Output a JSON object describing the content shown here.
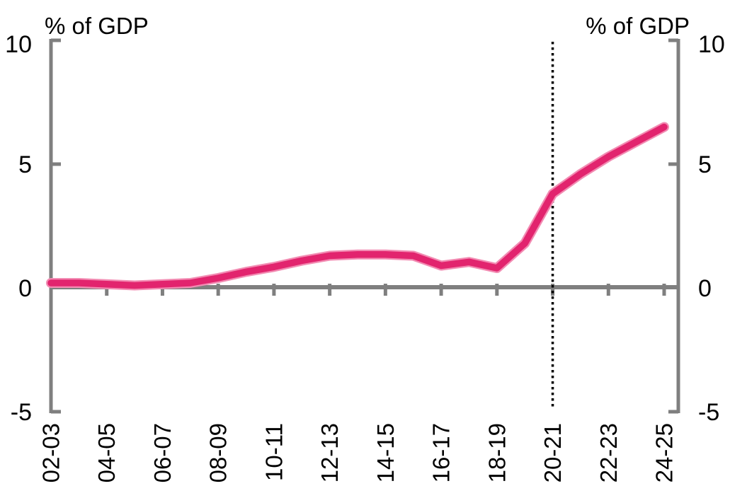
{
  "chart_data": {
    "type": "line",
    "title": "",
    "ylabel_left": "% of GDP",
    "ylabel_right": "% of GDP",
    "x": [
      "02-03",
      "03-04",
      "04-05",
      "05-06",
      "06-07",
      "07-08",
      "08-09",
      "09-10",
      "10-11",
      "11-12",
      "12-13",
      "13-14",
      "14-15",
      "15-16",
      "16-17",
      "17-18",
      "18-19",
      "19-20",
      "20-21",
      "21-22",
      "22-23",
      "23-24",
      "24-25"
    ],
    "x_tick_labels": [
      "02-03",
      "04-05",
      "06-07",
      "08-09",
      "10-11",
      "12-13",
      "14-15",
      "16-17",
      "18-19",
      "20-21",
      "22-23",
      "24-25"
    ],
    "series": [
      {
        "name": "series-percent-of-gdp",
        "values": [
          0.2,
          0.2,
          0.15,
          0.1,
          0.15,
          0.2,
          0.4,
          0.65,
          0.85,
          1.1,
          1.3,
          1.35,
          1.35,
          1.3,
          0.9,
          1.05,
          0.8,
          1.8,
          3.8,
          4.6,
          5.3,
          5.9,
          6.5
        ],
        "color": "#e2246e",
        "halo_color": "#f28bb2"
      }
    ],
    "y_ticks": [
      -5,
      0,
      5,
      10
    ],
    "ylim": [
      -5,
      10
    ],
    "vline": {
      "at": "20-21",
      "style": "dotted",
      "color": "#000000"
    },
    "axis_color": "#7f7f7f",
    "text_color": "#000000",
    "grid": false,
    "legend": false
  }
}
